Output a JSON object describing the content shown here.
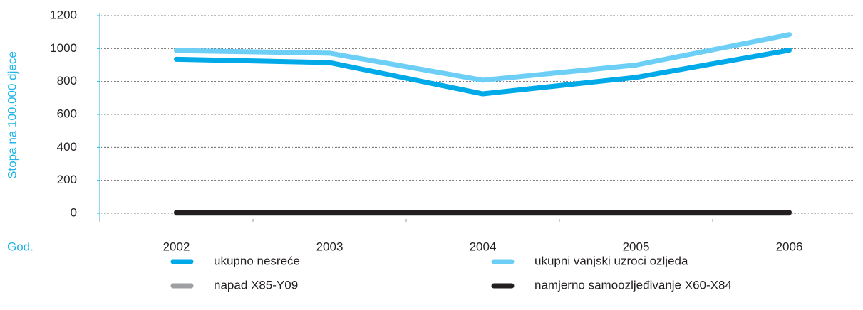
{
  "chart_data": {
    "type": "line",
    "ylabel": "Stopa na 100.000 djece",
    "xlabel": "God.",
    "categories": [
      "2002",
      "2003",
      "2004",
      "2005",
      "2006"
    ],
    "series": [
      {
        "name": "ukupno nesreće",
        "color": "#00a9e8",
        "values": [
          935,
          915,
          725,
          825,
          990
        ]
      },
      {
        "name": "ukupni vanjski uzroci ozljeda",
        "color": "#6dcff6",
        "values": [
          988,
          972,
          808,
          900,
          1085
        ]
      },
      {
        "name": "napad X85-Y09",
        "color": "#9d9fa2",
        "values": [
          0,
          0,
          0,
          0,
          0
        ]
      },
      {
        "name": "namjerno samoozljeđivanje X60-X84",
        "color": "#231f20",
        "values": [
          5,
          5,
          5,
          5,
          5
        ]
      }
    ],
    "ylim": [
      0,
      1200
    ],
    "yticks": [
      0,
      200,
      400,
      600,
      800,
      1000,
      1200
    ],
    "grid": true
  }
}
